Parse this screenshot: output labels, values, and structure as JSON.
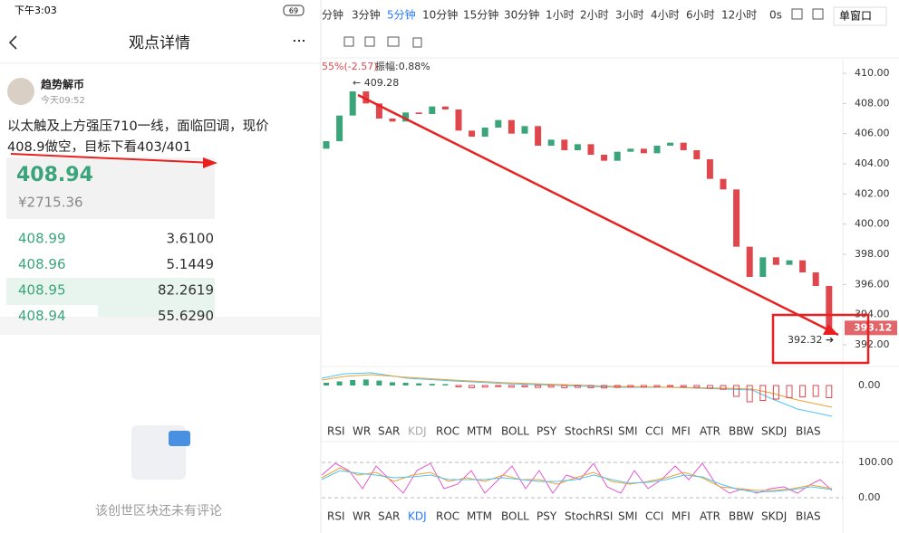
{
  "phone": {
    "status_time": "下午3:03",
    "battery": "69",
    "title": "观点详情",
    "author": "趋势解币",
    "post_time": "今天09:52",
    "post": [
      "以太触及上方强压710一线，面临回调，现价",
      "408.9做空，目标下看403/401"
    ],
    "price": "408.94",
    "price_cny": "¥2715.36",
    "orderbook": [
      [
        "408.99",
        "3.6100"
      ],
      [
        "408.96",
        "5.1449"
      ],
      [
        "408.95",
        "82.2619"
      ],
      [
        "408.94",
        "55.6290"
      ]
    ],
    "empty_comments": "该创世区块还未有评论"
  },
  "toolbar": {
    "intervals": [
      "分钟",
      "3分钟",
      "5分钟",
      "10分钟",
      "15分钟",
      "30分钟",
      "1小时",
      "2小时",
      "3小时",
      "4小时",
      "6小时",
      "12小时",
      "0s"
    ],
    "window": "单窗口"
  },
  "indicators": [
    "RSI",
    "WR",
    "SAR",
    "KDJ",
    "ROC",
    "MTM",
    "BOLL",
    "PSY",
    "StochRSI",
    "SMI",
    "CCI",
    "MFI",
    "ATR",
    "BBW",
    "SKDJ",
    "BIAS"
  ],
  "chart_data": {
    "type": "candlestick",
    "info": [
      "55%(-2.57)",
      "振幅:0.88%"
    ],
    "open_first": 405.0,
    "closes": [
      405.5,
      407.2,
      408.8,
      408.0,
      407.0,
      406.8,
      407.4,
      407.3,
      407.8,
      407.6,
      406.2,
      405.8,
      406.4,
      406.9,
      406.0,
      406.5,
      405.2,
      405.6,
      404.9,
      405.3,
      404.6,
      404.2,
      404.8,
      405.0,
      404.7,
      405.2,
      405.4,
      404.9,
      404.3,
      403.0,
      402.3,
      398.5,
      396.5,
      397.8,
      397.3,
      397.6,
      396.8,
      395.9,
      393.12
    ],
    "up_color": "#3aa57a",
    "down_color": "#e0474c",
    "ylim": [
      390.86,
      410.96
    ],
    "yticks": [
      {
        "value": 410,
        "label": "410.00"
      },
      {
        "value": 408,
        "label": "408.00"
      },
      {
        "value": 406,
        "label": "406.00"
      },
      {
        "value": 404,
        "label": "404.00"
      },
      {
        "value": 402,
        "label": "402.00"
      },
      {
        "value": 400,
        "label": "400.00"
      },
      {
        "value": 398,
        "label": "398.00"
      },
      {
        "value": 396,
        "label": "396.00"
      },
      {
        "value": 394,
        "label": "394.00"
      },
      {
        "value": 392,
        "label": "392.00"
      }
    ],
    "high_label": "← 409.28",
    "low_label": "392.32 ➔",
    "current_price": "393.12",
    "macd": {
      "ylim": [
        -1.3,
        0.7
      ],
      "yticks": [
        {
          "value": 0,
          "label": "0.00"
        }
      ],
      "histogram": [
        0.1,
        0.15,
        0.2,
        0.22,
        0.18,
        0.12,
        0.1,
        0.08,
        0.06,
        0.05,
        -0.05,
        -0.08,
        -0.06,
        -0.04,
        -0.06,
        -0.05,
        -0.07,
        -0.06,
        -0.08,
        -0.07,
        -0.08,
        -0.09,
        -0.07,
        -0.06,
        -0.06,
        -0.05,
        -0.04,
        -0.05,
        -0.07,
        -0.1,
        -0.14,
        -0.4,
        -0.6,
        -0.55,
        -0.5,
        -0.45,
        -0.42,
        -0.4,
        -0.45
      ]
    },
    "kdj": {
      "ylim": [
        -51.3,
        153.8
      ],
      "yticks": [
        {
          "value": 100,
          "label": "100.00"
        },
        {
          "value": 0,
          "label": "0.00"
        }
      ]
    }
  }
}
